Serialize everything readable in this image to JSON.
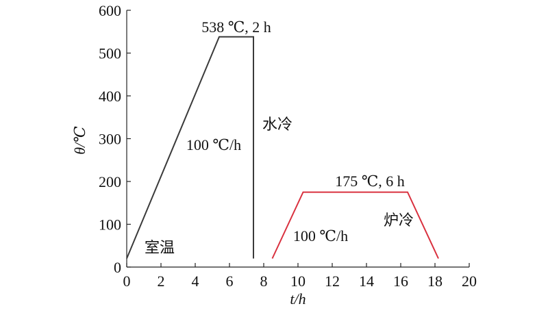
{
  "chart_data": {
    "type": "line",
    "x_label": "t/h",
    "y_label": "θ/℃",
    "xlim": [
      0,
      20
    ],
    "xticks": [
      0,
      2,
      4,
      6,
      8,
      10,
      12,
      14,
      16,
      18,
      20
    ],
    "ylim": [
      0,
      600
    ],
    "yticks": [
      0,
      100,
      200,
      300,
      400,
      500,
      600
    ],
    "series": [
      {
        "color": "#3a3a3a",
        "x": [
          0,
          5.4,
          7.4,
          7.4
        ],
        "values": [
          20,
          538,
          538,
          20
        ]
      },
      {
        "color": "#d9303e",
        "x": [
          8.5,
          10.3,
          16.4,
          18.2
        ],
        "values": [
          20,
          175,
          175,
          20
        ]
      }
    ],
    "annotations": [
      "538 ℃, 2 h",
      "水冷",
      "100 ℃/h",
      "室温",
      "175 ℃, 6 h",
      "炉冷",
      "100 ℃/h"
    ]
  }
}
